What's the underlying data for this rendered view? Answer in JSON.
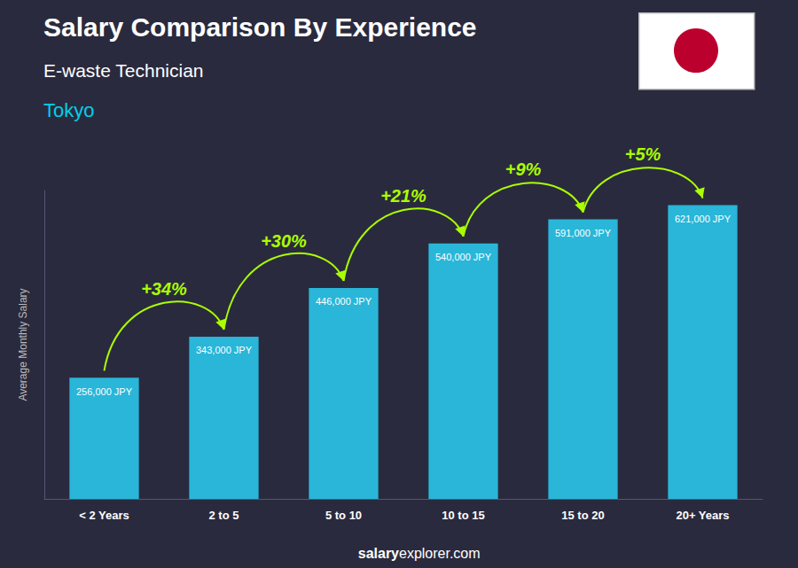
{
  "chart_data": {
    "type": "bar",
    "title": "Salary Comparison By Experience",
    "subtitle": "E-waste Technician",
    "city": "Tokyo",
    "ylabel": "Average Monthly Salary",
    "categories": [
      "< 2 Years",
      "2 to 5",
      "5 to 10",
      "10 to 15",
      "15 to 20",
      "20+ Years"
    ],
    "values": [
      256000,
      343000,
      446000,
      540000,
      591000,
      621000
    ],
    "value_labels": [
      "256,000 JPY",
      "343,000 JPY",
      "446,000 JPY",
      "540,000 JPY",
      "591,000 JPY",
      "621,000 JPY"
    ],
    "data_labels": true,
    "color": "#29b6d8",
    "ylim": [
      0,
      652050
    ],
    "grid": false,
    "tick_labels": "x",
    "annotations": [
      {
        "text": "+34%",
        "from": "< 2 Years",
        "to": "2 to 5"
      },
      {
        "text": "+30%",
        "from": "2 to 5",
        "to": "5 to 10"
      },
      {
        "text": "+21%",
        "from": "5 to 10",
        "to": "10 to 15"
      },
      {
        "text": "+9%",
        "from": "10 to 15",
        "to": "15 to 20"
      },
      {
        "text": "+5%",
        "from": "15 to 20",
        "to": "20+ Years"
      }
    ],
    "footer": [
      "salary",
      "explorer.com"
    ]
  }
}
